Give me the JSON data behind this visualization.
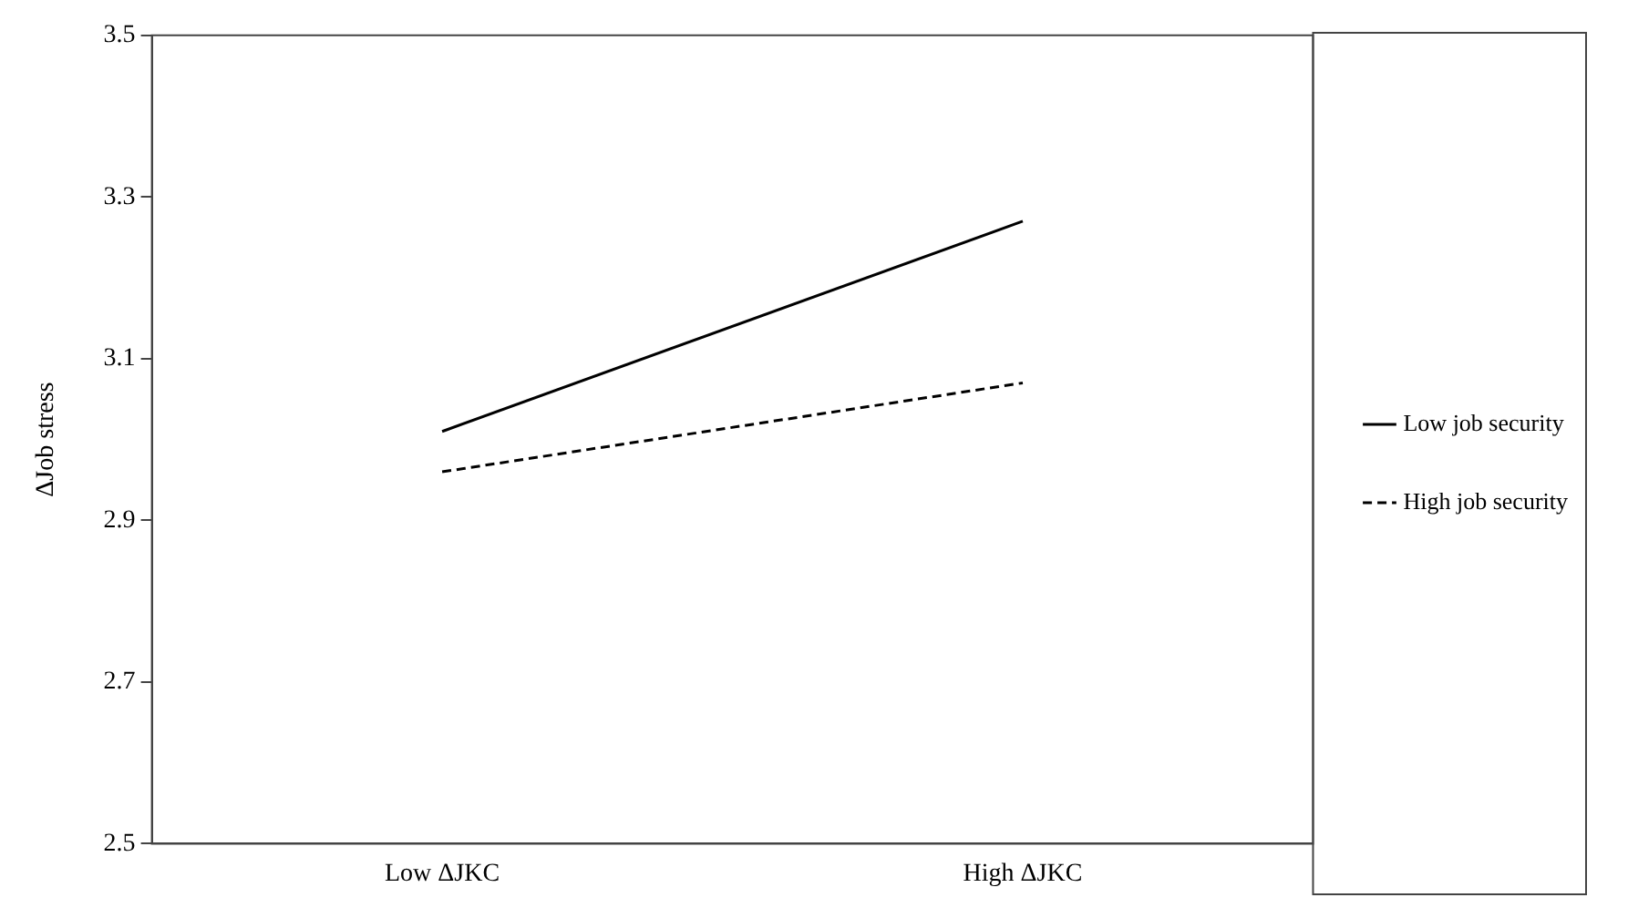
{
  "chart_data": {
    "type": "line",
    "ylabel": "ΔJob stress",
    "categories": [
      "Low ΔJKC",
      "High ΔJKC"
    ],
    "series": [
      {
        "name": "Low job security",
        "color": "#000000",
        "values": [
          3.01,
          3.27
        ],
        "line_style": "solid"
      },
      {
        "name": "High job security",
        "color": "#000000",
        "values": [
          2.96,
          3.07
        ],
        "line_style": "dashed"
      }
    ],
    "ylim": [
      2.5,
      3.5
    ],
    "yticks": [
      2.5,
      2.7,
      2.9,
      3.1,
      3.3,
      3.5
    ],
    "grid": false,
    "legend": "right",
    "marker": "none"
  }
}
